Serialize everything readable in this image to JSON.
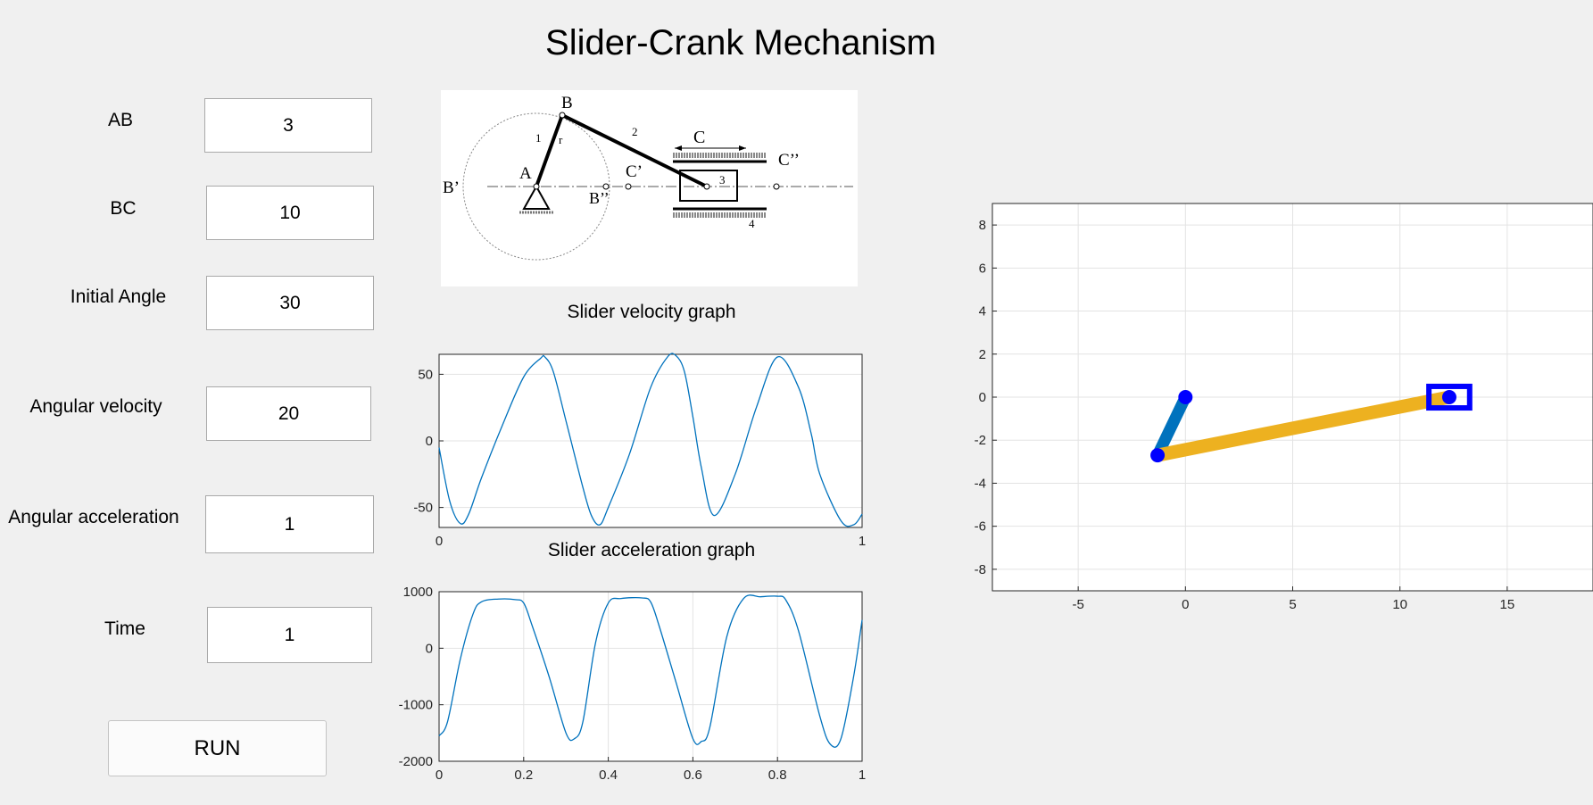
{
  "app": {
    "title": "Slider-Crank Mechanism"
  },
  "inputs": [
    {
      "key": "ab",
      "label": "AB",
      "value": "3"
    },
    {
      "key": "bc",
      "label": "BC",
      "value": "10"
    },
    {
      "key": "initial_angle",
      "label": "Initial Angle",
      "value": "30"
    },
    {
      "key": "angular_velocity",
      "label": "Angular velocity",
      "value": "20"
    },
    {
      "key": "angular_acceleration",
      "label": "Angular acceleration",
      "value": "1"
    },
    {
      "key": "time",
      "label": "Time",
      "value": "1"
    }
  ],
  "run_button": {
    "label": "RUN"
  },
  "schematic": {
    "labels": {
      "A": "A",
      "B": "B",
      "B_prime": "B’",
      "B_dprime": "B’’",
      "C": "C",
      "C_prime": "C’",
      "C_dprime": "C’’",
      "link1": "1",
      "r": "r",
      "link2": "2",
      "link3": "3",
      "link4": "4"
    }
  },
  "captions": {
    "velocity": "Slider velocity graph",
    "acceleration": "Slider acceleration graph"
  },
  "colors": {
    "line": "#0072bd",
    "crank": "#0072bd",
    "rod": "#edb120",
    "joint": "#0000ff",
    "slider": "#0000ff"
  },
  "chart_data": [
    {
      "id": "velocity",
      "type": "line",
      "title": "Slider velocity graph",
      "xlabel": "",
      "ylabel": "",
      "xlim": [
        0,
        1
      ],
      "ylim": [
        -65,
        65
      ],
      "xticks": [
        0,
        1
      ],
      "xtick_labels": [
        "0",
        "1"
      ],
      "yticks": [
        -50,
        0,
        50
      ],
      "ytick_labels": [
        "-50",
        "0",
        "50"
      ],
      "grid": true,
      "series": [
        {
          "x": [
            0,
            0.025,
            0.05,
            0.07,
            0.1,
            0.15,
            0.2,
            0.24,
            0.25,
            0.27,
            0.3,
            0.34,
            0.36,
            0.38,
            0.4,
            0.45,
            0.5,
            0.54,
            0.56,
            0.58,
            0.6,
            0.62,
            0.65,
            0.7,
            0.75,
            0.8,
            0.85,
            0.88,
            0.9,
            0.95,
            0.98,
            1.0
          ],
          "y": [
            -5,
            -45,
            -62,
            -55,
            -28,
            12,
            48,
            62,
            63,
            52,
            15,
            -35,
            -56,
            -63,
            -50,
            -10,
            40,
            63,
            64,
            52,
            18,
            -20,
            -56,
            -25,
            25,
            63,
            40,
            5,
            -25,
            -60,
            -63,
            -55
          ]
        }
      ]
    },
    {
      "id": "acceleration",
      "type": "line",
      "title": "Slider acceleration graph",
      "xlabel": "",
      "ylabel": "",
      "xlim": [
        0,
        1
      ],
      "ylim": [
        -2000,
        1000
      ],
      "xticks": [
        0,
        0.2,
        0.4,
        0.6,
        0.8,
        1
      ],
      "xtick_labels": [
        "0",
        "0.2",
        "0.4",
        "0.6",
        "0.8",
        "1"
      ],
      "yticks": [
        -2000,
        -1000,
        0,
        1000
      ],
      "ytick_labels": [
        "-2000",
        "-1000",
        "0",
        "1000"
      ],
      "grid": true,
      "series": [
        {
          "x": [
            0,
            0.02,
            0.05,
            0.08,
            0.1,
            0.14,
            0.18,
            0.2,
            0.22,
            0.26,
            0.3,
            0.32,
            0.34,
            0.37,
            0.4,
            0.43,
            0.48,
            0.5,
            0.52,
            0.56,
            0.6,
            0.62,
            0.64,
            0.68,
            0.72,
            0.76,
            0.8,
            0.82,
            0.85,
            0.9,
            0.925,
            0.95,
            0.98,
            1.0
          ],
          "y": [
            -1550,
            -1300,
            -200,
            600,
            820,
            870,
            860,
            800,
            400,
            -500,
            -1500,
            -1600,
            -1300,
            100,
            800,
            880,
            890,
            820,
            400,
            -600,
            -1600,
            -1650,
            -1400,
            200,
            880,
            910,
            920,
            850,
            300,
            -1200,
            -1700,
            -1600,
            -500,
            500
          ]
        }
      ]
    },
    {
      "id": "mechanism",
      "type": "line",
      "title": "",
      "xlabel": "",
      "ylabel": "",
      "xlim": [
        -9,
        19
      ],
      "ylim": [
        -9,
        9
      ],
      "xticks": [
        -5,
        0,
        5,
        10,
        15
      ],
      "xtick_labels": [
        "-5",
        "0",
        "5",
        "10",
        "15"
      ],
      "yticks": [
        -8,
        -6,
        -4,
        -2,
        0,
        2,
        4,
        6,
        8
      ],
      "ytick_labels": [
        "-8",
        "-6",
        "-4",
        "-2",
        "0",
        "2",
        "4",
        "6",
        "8"
      ],
      "grid": true,
      "series": [
        {
          "name": "",
          "x": [
            0,
            -1.3
          ],
          "y": [
            0,
            -2.7
          ]
        },
        {
          "name": "",
          "x": [
            -1.3,
            12.3
          ],
          "y": [
            -2.7,
            0
          ]
        }
      ],
      "joints": [
        {
          "x": 0,
          "y": 0
        },
        {
          "x": -1.3,
          "y": -2.7
        },
        {
          "x": 12.3,
          "y": 0
        }
      ],
      "slider": {
        "x": 12.3,
        "y": 0,
        "w": 1.9,
        "h": 1.0
      }
    }
  ]
}
